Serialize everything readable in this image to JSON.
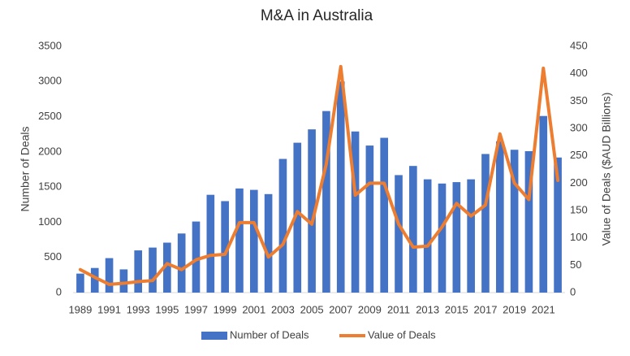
{
  "chart_data": {
    "type": "bar-line",
    "title": "M&A in Australia",
    "categories": [
      "1989",
      null,
      "1991",
      null,
      "1993",
      null,
      "1995",
      null,
      "1997",
      null,
      "1999",
      null,
      "2001",
      null,
      "2003",
      null,
      "2005",
      null,
      "2007",
      null,
      "2009",
      null,
      "2011",
      null,
      "2013",
      null,
      "2015",
      null,
      "2017",
      null,
      "2019",
      null,
      "2021",
      null
    ],
    "series": [
      {
        "name": "Number of Deals",
        "type": "bar",
        "color": "#4472c4",
        "values": [
          270,
          350,
          490,
          330,
          600,
          640,
          710,
          840,
          1010,
          1390,
          1300,
          1480,
          1460,
          1400,
          1900,
          2130,
          2320,
          2580,
          3000,
          2290,
          2090,
          2200,
          1670,
          1800,
          1610,
          1550,
          1570,
          1610,
          1970,
          2150,
          2030,
          2010,
          2510,
          1920
        ]
      },
      {
        "name": "Value of Deals",
        "type": "line",
        "axis": "y2",
        "color": "#ed7d31",
        "values": [
          42,
          28,
          15,
          17,
          20,
          22,
          53,
          42,
          60,
          68,
          70,
          128,
          128,
          65,
          88,
          148,
          125,
          235,
          413,
          178,
          200,
          200,
          125,
          83,
          85,
          120,
          163,
          140,
          160,
          290,
          200,
          170,
          410,
          205
        ]
      }
    ],
    "y_label": "Number of Deals",
    "y2_label": "Value of Deals ($AUD Billions)",
    "ylim": [
      0,
      3500
    ],
    "yticks": [
      0,
      500,
      1000,
      1500,
      2000,
      2500,
      3000,
      3500
    ],
    "y2lim": [
      0,
      450
    ],
    "y2ticks": [
      0,
      50,
      100,
      150,
      200,
      250,
      300,
      350,
      400,
      450
    ],
    "grid": false,
    "legend": "bottom"
  }
}
